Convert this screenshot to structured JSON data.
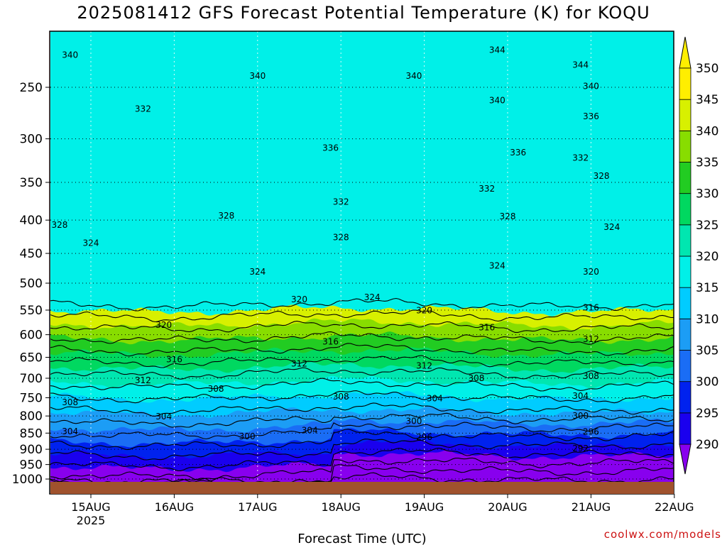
{
  "chart_data": {
    "type": "heatmap",
    "title": "2025081412 GFS Forecast Potential Temperature (K) for KOQU",
    "xlabel": "Forecast Time (UTC)",
    "ylabel": "",
    "x_ticks": [
      "15AUG",
      "16AUG",
      "17AUG",
      "18AUG",
      "19AUG",
      "20AUG",
      "21AUG",
      "22AUG"
    ],
    "x_year_label": "2025",
    "x_range": [
      "2025-08-14 12Z",
      "2025-08-22 00Z"
    ],
    "y_axis_scale": "log-pressure",
    "y_ticks_hpa": [
      250,
      300,
      350,
      400,
      450,
      500,
      550,
      600,
      650,
      700,
      750,
      800,
      850,
      900,
      950,
      1000
    ],
    "y_range_hpa": [
      1010,
      205
    ],
    "colorbar": {
      "levels": [
        290,
        295,
        300,
        305,
        310,
        315,
        320,
        325,
        330,
        335,
        340,
        345,
        350
      ],
      "labels": [
        "290",
        "295",
        "300",
        "305",
        "310",
        "315",
        "320",
        "325",
        "330",
        "335",
        "340",
        "345",
        "350"
      ]
    },
    "contour_labels": [
      {
        "text": "340",
        "time": "14AUG 18Z",
        "p": 223
      },
      {
        "text": "336",
        "time": "14AUG 12Z",
        "p": 272
      },
      {
        "text": "332",
        "time": "15AUG 15Z",
        "p": 270
      },
      {
        "text": "340",
        "time": "17AUG 00Z",
        "p": 240
      },
      {
        "text": "340",
        "time": "18AUG 21Z",
        "p": 240
      },
      {
        "text": "344",
        "time": "19AUG 21Z",
        "p": 219
      },
      {
        "text": "344",
        "time": "20AUG 21Z",
        "p": 231
      },
      {
        "text": "340",
        "time": "19AUG 21Z",
        "p": 262
      },
      {
        "text": "340",
        "time": "21AUG 00Z",
        "p": 249
      },
      {
        "text": "336",
        "time": "20AUG 03Z",
        "p": 315
      },
      {
        "text": "336",
        "time": "21AUG 00Z",
        "p": 277
      },
      {
        "text": "336",
        "time": "17AUG 21Z",
        "p": 310
      },
      {
        "text": "332",
        "time": "20AUG 21Z",
        "p": 321
      },
      {
        "text": "328",
        "time": "21AUG 03Z",
        "p": 342
      },
      {
        "text": "332",
        "time": "19AUG 18Z",
        "p": 358
      },
      {
        "text": "332",
        "time": "18AUG 00Z",
        "p": 375
      },
      {
        "text": "328",
        "time": "14AUG 15Z",
        "p": 407
      },
      {
        "text": "328",
        "time": "16AUG 15Z",
        "p": 394
      },
      {
        "text": "328",
        "time": "18AUG 00Z",
        "p": 425
      },
      {
        "text": "328",
        "time": "20AUG 00Z",
        "p": 395
      },
      {
        "text": "324",
        "time": "21AUG 06Z",
        "p": 410
      },
      {
        "text": "324",
        "time": "15AUG 00Z",
        "p": 434
      },
      {
        "text": "324",
        "time": "17AUG 00Z",
        "p": 480
      },
      {
        "text": "324",
        "time": "19AUG 21Z",
        "p": 470
      },
      {
        "text": "320",
        "time": "21AUG 00Z",
        "p": 480
      },
      {
        "text": "324",
        "time": "18AUG 09Z",
        "p": 526
      },
      {
        "text": "320",
        "time": "17AUG 12Z",
        "p": 530
      },
      {
        "text": "320",
        "time": "19AUG 00Z",
        "p": 551
      },
      {
        "text": "316",
        "time": "21AUG 00Z",
        "p": 545
      },
      {
        "text": "320",
        "time": "15AUG 21Z",
        "p": 580
      },
      {
        "text": "316",
        "time": "19AUG 18Z",
        "p": 585
      },
      {
        "text": "312",
        "time": "21AUG 00Z",
        "p": 610
      },
      {
        "text": "316",
        "time": "17AUG 21Z",
        "p": 615
      },
      {
        "text": "316",
        "time": "16AUG 00Z",
        "p": 655
      },
      {
        "text": "312",
        "time": "17AUG 12Z",
        "p": 665
      },
      {
        "text": "312",
        "time": "19AUG 00Z",
        "p": 670
      },
      {
        "text": "308",
        "time": "19AUG 15Z",
        "p": 700
      },
      {
        "text": "308",
        "time": "21AUG 00Z",
        "p": 695
      },
      {
        "text": "312",
        "time": "15AUG 15Z",
        "p": 705
      },
      {
        "text": "308",
        "time": "16AUG 12Z",
        "p": 727
      },
      {
        "text": "308",
        "time": "18AUG 00Z",
        "p": 747
      },
      {
        "text": "304",
        "time": "19AUG 03Z",
        "p": 752
      },
      {
        "text": "304",
        "time": "20AUG 21Z",
        "p": 745
      },
      {
        "text": "308",
        "time": "14AUG 18Z",
        "p": 762
      },
      {
        "text": "304",
        "time": "15AUG 21Z",
        "p": 802
      },
      {
        "text": "300",
        "time": "20AUG 21Z",
        "p": 800
      },
      {
        "text": "300",
        "time": "18AUG 21Z",
        "p": 815
      },
      {
        "text": "304",
        "time": "17AUG 15Z",
        "p": 842
      },
      {
        "text": "304",
        "time": "14AUG 18Z",
        "p": 845
      },
      {
        "text": "296",
        "time": "21AUG 00Z",
        "p": 846
      },
      {
        "text": "300",
        "time": "16AUG 21Z",
        "p": 860
      },
      {
        "text": "296",
        "time": "19AUG 00Z",
        "p": 862
      },
      {
        "text": "292",
        "time": "20AUG 21Z",
        "p": 897
      }
    ]
  },
  "credit": "coolwx.com/models",
  "colors": {
    "fill_levels": [
      "#8800ee",
      "#1a00ee",
      "#0022ee",
      "#1a6df5",
      "#1c9df5",
      "#00ccff",
      "#00f0e8",
      "#00e6b0",
      "#00d860",
      "#22cc22",
      "#88dd00",
      "#d8f000",
      "#ffee00"
    ],
    "ground": "#a0522d",
    "contour": "#000000",
    "frame": "#000000"
  }
}
